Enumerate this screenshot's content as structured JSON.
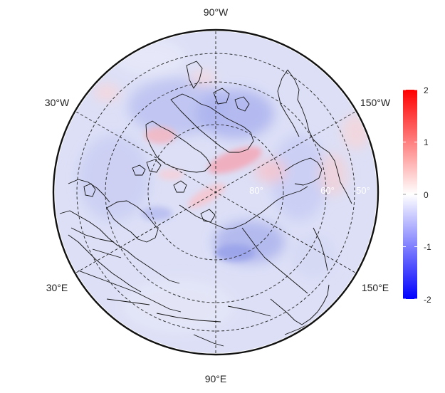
{
  "map": {
    "projection": "north-polar-stereographic",
    "longitude_labels": {
      "top": "90°W",
      "bottom": "90°E",
      "upper_left": "30°W",
      "lower_left": "30°E",
      "upper_right": "150°W",
      "lower_right": "150°E"
    },
    "latitude_labels": [
      "80°",
      "60°",
      "50°"
    ],
    "gridlines": "dashed",
    "coastlines": true
  },
  "colorbar": {
    "ticks": [
      "2",
      "1",
      "0",
      "-1",
      "-2"
    ],
    "min": -2,
    "max": 2,
    "colors": {
      "max": "#ff0000",
      "mid": "#ffffff",
      "min": "#0000ff"
    }
  }
}
